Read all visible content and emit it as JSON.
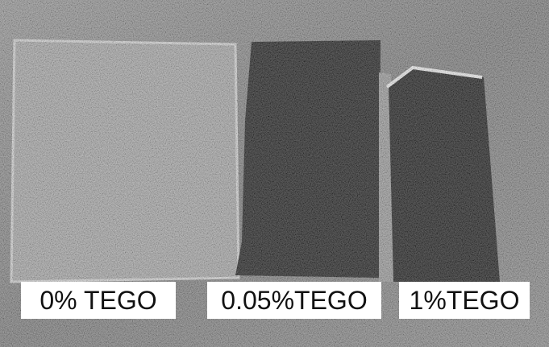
{
  "labels": [
    {
      "text": "0% TEGO"
    },
    {
      "text": "0.05%TEGO"
    },
    {
      "text": "1%TEGO"
    }
  ]
}
